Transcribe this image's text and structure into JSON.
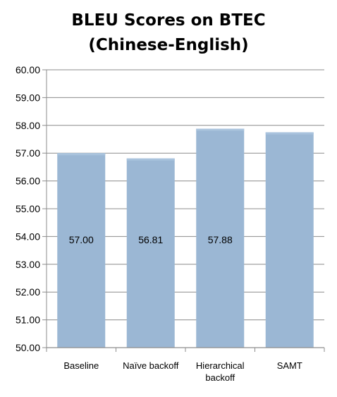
{
  "chart_data": {
    "type": "bar",
    "title": "BLEU Scores on BTEC (Chinese-English)",
    "title_lines": [
      "BLEU Scores on BTEC",
      "(Chinese-English)"
    ],
    "categories": [
      "Baseline",
      "Naïve backoff",
      "Hierarchical backoff",
      "SAMT"
    ],
    "category_lines": [
      [
        "Baseline"
      ],
      [
        "Naïve backoff"
      ],
      [
        "Hierarchical",
        "backoff"
      ],
      [
        "SAMT"
      ]
    ],
    "values": [
      57.0,
      56.81,
      57.88,
      57.75
    ],
    "data_labels": [
      "57.00",
      "56.81",
      "57.88",
      ""
    ],
    "ylim": [
      50,
      60
    ],
    "yticks": [
      "50.00",
      "51.00",
      "52.00",
      "53.00",
      "54.00",
      "55.00",
      "56.00",
      "57.00",
      "58.00",
      "59.00",
      "60.00"
    ],
    "xlabel": "",
    "ylabel": "",
    "grid": true,
    "legend": "none",
    "colors": {
      "bar": "#9bb7d4",
      "grid": "#8c8c8c",
      "axis": "#8c8c8c",
      "text": "#000000"
    }
  }
}
